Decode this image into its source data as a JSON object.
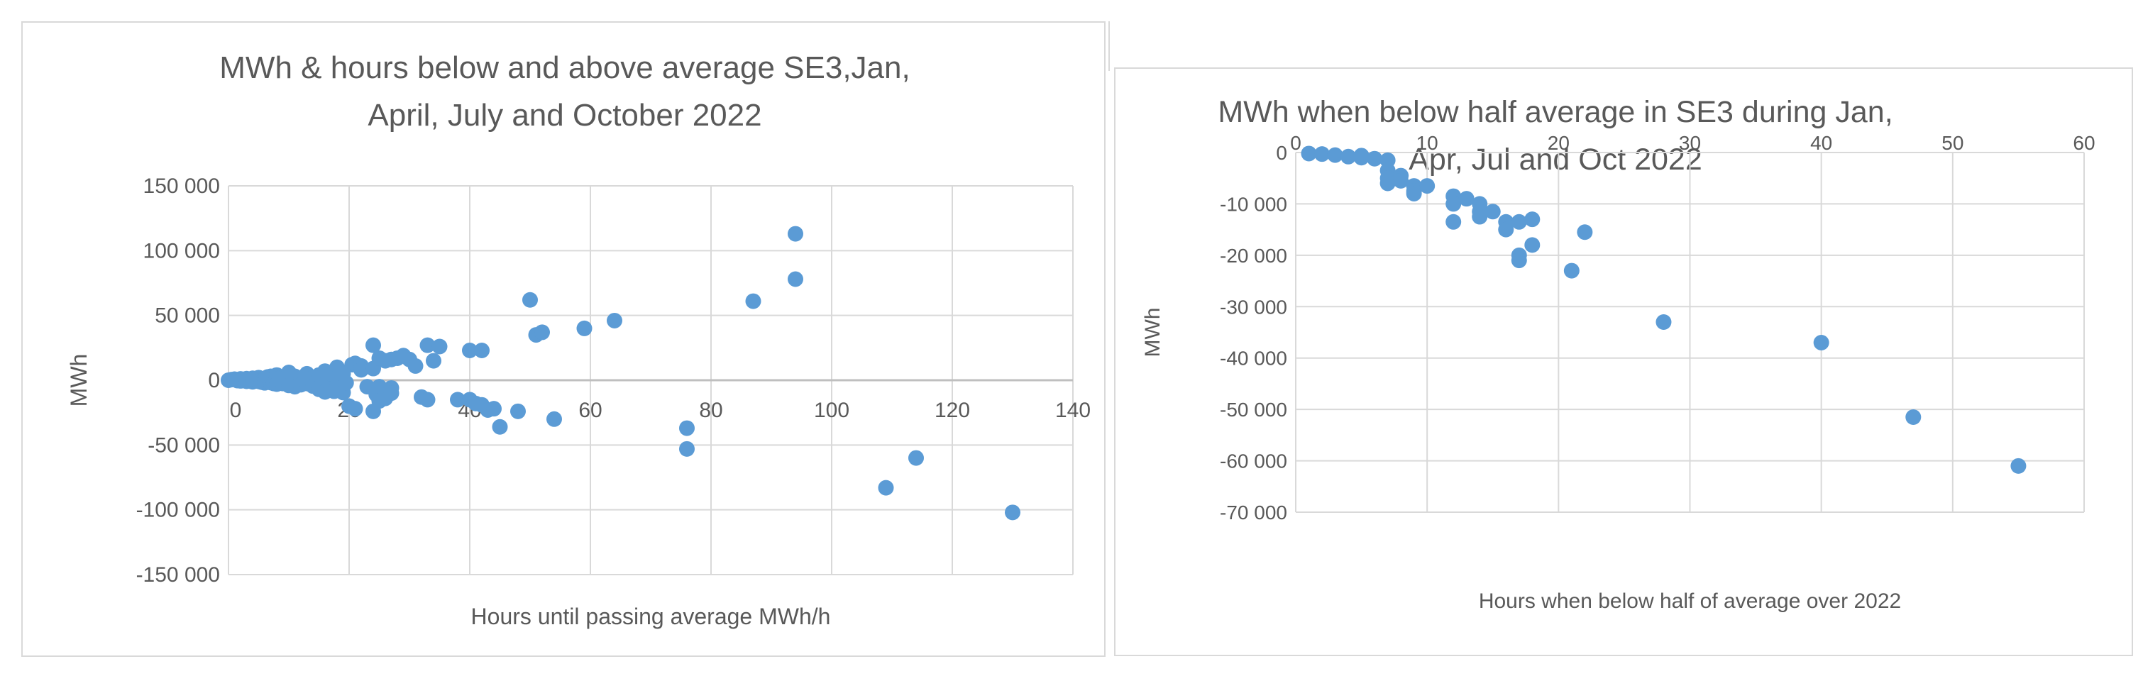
{
  "charts": [
    {
      "id": "chart1",
      "type": "scatter",
      "title": [
        "MWh & hours below and above average SE3,Jan,",
        "April, July and October 2022"
      ],
      "xlabel": "Hours until passing average MWh/h",
      "ylabel": "MWh",
      "xlim": [
        0,
        140
      ],
      "ylim": [
        -150000,
        150000
      ],
      "xticks": [
        0,
        20,
        40,
        60,
        80,
        100,
        120,
        140
      ],
      "yticks": [
        -150000,
        -100000,
        -50000,
        0,
        50000,
        100000,
        150000
      ],
      "ytick_labels": [
        "-150 000",
        "-100 000",
        "-50 000",
        "0",
        "50 000",
        "100 000",
        "150 000"
      ],
      "xtick_labels": [
        "0",
        "20",
        "40",
        "60",
        "80",
        "100",
        "120",
        "140"
      ],
      "grid": true,
      "color": "#5b9bd5",
      "points": [
        [
          0,
          0
        ],
        [
          0.5,
          500
        ],
        [
          1,
          800
        ],
        [
          1.5,
          -300
        ],
        [
          2,
          1000
        ],
        [
          2,
          -500
        ],
        [
          2.5,
          400
        ],
        [
          3,
          1200
        ],
        [
          3,
          -800
        ],
        [
          3.5,
          300
        ],
        [
          4,
          1500
        ],
        [
          4,
          -1200
        ],
        [
          4.5,
          600
        ],
        [
          5,
          2000
        ],
        [
          5,
          -900
        ],
        [
          5.5,
          -1500
        ],
        [
          6,
          1000
        ],
        [
          6,
          -2000
        ],
        [
          6.5,
          2500
        ],
        [
          7,
          -1800
        ],
        [
          7,
          3000
        ],
        [
          7.5,
          -2500
        ],
        [
          8,
          4000
        ],
        [
          8,
          -3000
        ],
        [
          8.5,
          1500
        ],
        [
          9,
          -2500
        ],
        [
          9.5,
          3000
        ],
        [
          10,
          6000
        ],
        [
          10,
          -4000
        ],
        [
          11,
          3000
        ],
        [
          11,
          -5000
        ],
        [
          12,
          1500
        ],
        [
          12,
          -3500
        ],
        [
          13,
          5000
        ],
        [
          13,
          -2500
        ],
        [
          14,
          2000
        ],
        [
          14,
          -4500
        ],
        [
          15,
          4000
        ],
        [
          15,
          -7000
        ],
        [
          15.5,
          1000
        ],
        [
          16,
          7000
        ],
        [
          16,
          -9000
        ],
        [
          16.5,
          3000
        ],
        [
          17,
          -5000
        ],
        [
          17,
          5000
        ],
        [
          17.5,
          -8500
        ],
        [
          18,
          10000
        ],
        [
          18,
          2000
        ],
        [
          18.5,
          -7000
        ],
        [
          19,
          5000
        ],
        [
          19,
          -9500
        ],
        [
          19.5,
          -2000
        ],
        [
          20,
          -20000
        ],
        [
          20.5,
          12000
        ],
        [
          21,
          13000
        ],
        [
          21,
          -22000
        ],
        [
          22,
          11000
        ],
        [
          22,
          8000
        ],
        [
          23,
          -5000
        ],
        [
          24,
          27000
        ],
        [
          24,
          9000
        ],
        [
          24,
          -24000
        ],
        [
          24.5,
          -11000
        ],
        [
          25,
          17000
        ],
        [
          25,
          -5000
        ],
        [
          25,
          -16000
        ],
        [
          26,
          15000
        ],
        [
          26,
          -8000
        ],
        [
          26,
          -14000
        ],
        [
          27,
          -6000
        ],
        [
          27,
          16000
        ],
        [
          27,
          -10000
        ],
        [
          28,
          17000
        ],
        [
          29,
          19000
        ],
        [
          30,
          16000
        ],
        [
          31,
          11000
        ],
        [
          32,
          -13000
        ],
        [
          33,
          27000
        ],
        [
          33,
          -15000
        ],
        [
          34,
          15000
        ],
        [
          35,
          26000
        ],
        [
          38,
          -15000
        ],
        [
          40,
          23000
        ],
        [
          40,
          -15000
        ],
        [
          41,
          -18000
        ],
        [
          42,
          23000
        ],
        [
          42,
          -19000
        ],
        [
          43,
          -23000
        ],
        [
          44,
          -22000
        ],
        [
          45,
          -36000
        ],
        [
          48,
          -24000
        ],
        [
          50,
          62000
        ],
        [
          51,
          35000
        ],
        [
          52,
          37000
        ],
        [
          54,
          -30000
        ],
        [
          59,
          40000
        ],
        [
          64,
          46000
        ],
        [
          76,
          -37000
        ],
        [
          76,
          -53000
        ],
        [
          87,
          61000
        ],
        [
          94,
          113000
        ],
        [
          94,
          78000
        ],
        [
          109,
          -83000
        ],
        [
          114,
          -60000
        ],
        [
          130,
          -102000
        ]
      ]
    },
    {
      "id": "chart2",
      "type": "scatter",
      "title": [
        "MWh when below half average in SE3 during Jan,",
        "Apr, Jul and Oct 2022"
      ],
      "xlabel": "Hours when below half of average over 2022",
      "ylabel": "MWh",
      "xlim": [
        0,
        60
      ],
      "ylim": [
        -70000,
        0
      ],
      "xticks": [
        0,
        10,
        20,
        30,
        40,
        50,
        60
      ],
      "yticks": [
        0,
        -10000,
        -20000,
        -30000,
        -40000,
        -50000,
        -60000,
        -70000
      ],
      "ytick_labels": [
        "0",
        "-10 000",
        "-20 000",
        "-30 000",
        "-40 000",
        "-50 000",
        "-60 000",
        "-70 000"
      ],
      "xtick_labels": [
        "0",
        "10",
        "20",
        "30",
        "40",
        "50",
        "60"
      ],
      "grid": true,
      "color": "#5b9bd5",
      "points": [
        [
          1,
          -200
        ],
        [
          2,
          -300
        ],
        [
          3,
          -500
        ],
        [
          4,
          -800
        ],
        [
          5,
          -1000
        ],
        [
          5,
          -600
        ],
        [
          6,
          -1200
        ],
        [
          7,
          -1500
        ],
        [
          7,
          -3500
        ],
        [
          7,
          -5000
        ],
        [
          7,
          -6000
        ],
        [
          8,
          -4500
        ],
        [
          8,
          -5500
        ],
        [
          9,
          -6500
        ],
        [
          9,
          -7500
        ],
        [
          9,
          -8000
        ],
        [
          10,
          -6500
        ],
        [
          12,
          -8500
        ],
        [
          12,
          -10000
        ],
        [
          12,
          -13500
        ],
        [
          13,
          -9000
        ],
        [
          14,
          -10000
        ],
        [
          14,
          -11500
        ],
        [
          14,
          -12500
        ],
        [
          15,
          -11500
        ],
        [
          16,
          -13500
        ],
        [
          16,
          -15000
        ],
        [
          17,
          -13500
        ],
        [
          17,
          -20000
        ],
        [
          17,
          -21000
        ],
        [
          18,
          -13000
        ],
        [
          18,
          -18000
        ],
        [
          21,
          -23000
        ],
        [
          22,
          -15500
        ],
        [
          28,
          -33000
        ],
        [
          40,
          -37000
        ],
        [
          47,
          -51500
        ],
        [
          55,
          -61000
        ]
      ]
    }
  ]
}
